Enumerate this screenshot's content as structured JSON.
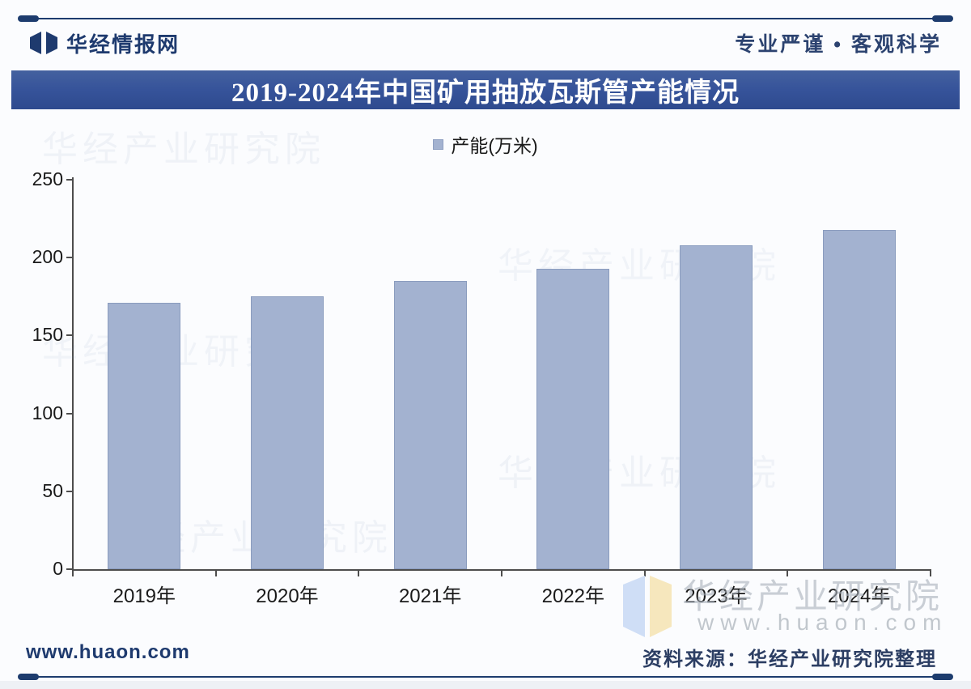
{
  "header": {
    "brand": "华经情报网",
    "slogan": "专业严谨 • 客观科学"
  },
  "title": "2019-2024年中国矿用抽放瓦斯管产能情况",
  "chart_data": {
    "type": "bar",
    "title": "2019-2024年中国矿用抽放瓦斯管产能情况",
    "categories": [
      "2019年",
      "2020年",
      "2021年",
      "2022年",
      "2023年",
      "2024年"
    ],
    "series": [
      {
        "name": "产能(万米)",
        "values": [
          171,
          175,
          185,
          193,
          208,
          218
        ]
      }
    ],
    "xlabel": "",
    "ylabel": "",
    "ylim": [
      0,
      250
    ],
    "yticks": [
      0,
      50,
      100,
      150,
      200,
      250
    ],
    "grid": false,
    "legend_position": "top",
    "bar_color": "#a3b2d0"
  },
  "watermark": {
    "name": "华经产业研究院",
    "site": "www.huaon.com"
  },
  "footer": {
    "site": "www.huaon.com",
    "source": "资料来源：华经产业研究院整理"
  },
  "colors": {
    "navy": "#1e3a6e",
    "banner_blue": "#36539a",
    "bar_fill": "#a3b2d0",
    "axis_gray": "#4d4d4d"
  }
}
